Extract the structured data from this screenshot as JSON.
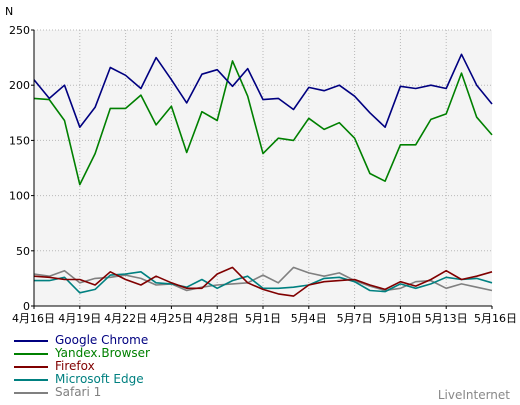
{
  "brand": "LiveInternet",
  "chart_data": {
    "type": "line",
    "ylabel": "N",
    "ylim": [
      0,
      250
    ],
    "yticks": [
      0,
      50,
      100,
      150,
      200,
      250
    ],
    "grid": true,
    "legend_position": "bottom-left",
    "x": [
      "4月16日",
      "4月17日",
      "4月18日",
      "4月19日",
      "4月20日",
      "4月21日",
      "4月22日",
      "4月23日",
      "4月24日",
      "4月25日",
      "4月26日",
      "4月27日",
      "4月28日",
      "4月29日",
      "4月30日",
      "5月1日",
      "5月2日",
      "5月3日",
      "5月4日",
      "5月5日",
      "5月6日",
      "5月7日",
      "5月8日",
      "5月9日",
      "5月10日",
      "5月11日",
      "5月12日",
      "5月13日",
      "5月14日",
      "5月15日",
      "5月16日"
    ],
    "xtick_labels": [
      "4月16日",
      "4月19日",
      "4月22日",
      "4月25日",
      "4月28日",
      "5月1日",
      "5月4日",
      "5月7日",
      "5月10日",
      "5月13日",
      "5月16日"
    ],
    "series": [
      {
        "name": "Google Chrome",
        "color": "#000080",
        "values": [
          205,
          188,
          200,
          162,
          180,
          216,
          209,
          197,
          225,
          205,
          184,
          210,
          214,
          199,
          215,
          187,
          188,
          178,
          198,
          195,
          200,
          190,
          175,
          162,
          199,
          197,
          200,
          197,
          228,
          200,
          183
        ]
      },
      {
        "name": "Yandex.Browser",
        "color": "#008000",
        "values": [
          188,
          187,
          168,
          110,
          138,
          179,
          179,
          191,
          164,
          181,
          139,
          176,
          168,
          222,
          190,
          138,
          152,
          150,
          170,
          160,
          166,
          152,
          120,
          113,
          146,
          146,
          169,
          174,
          211,
          171,
          155
        ]
      },
      {
        "name": "Firefox",
        "color": "#800000",
        "values": [
          27,
          26,
          24,
          24,
          19,
          31,
          24,
          19,
          27,
          21,
          16,
          16,
          29,
          35,
          21,
          15,
          11,
          9,
          19,
          22,
          23,
          24,
          19,
          15,
          22,
          18,
          24,
          32,
          24,
          27,
          31
        ]
      },
      {
        "name": "Microsoft Edge",
        "color": "#008080",
        "values": [
          23,
          23,
          26,
          12,
          15,
          28,
          29,
          31,
          21,
          20,
          17,
          24,
          16,
          23,
          27,
          16,
          16,
          17,
          19,
          25,
          26,
          22,
          14,
          13,
          20,
          16,
          20,
          26,
          24,
          25,
          21
        ]
      },
      {
        "name": "Safari 1",
        "color": "#808080",
        "values": [
          29,
          27,
          32,
          21,
          25,
          26,
          28,
          25,
          19,
          20,
          14,
          17,
          19,
          20,
          21,
          28,
          21,
          35,
          30,
          27,
          30,
          23,
          18,
          14,
          16,
          22,
          23,
          16,
          20,
          17,
          14
        ]
      }
    ]
  }
}
